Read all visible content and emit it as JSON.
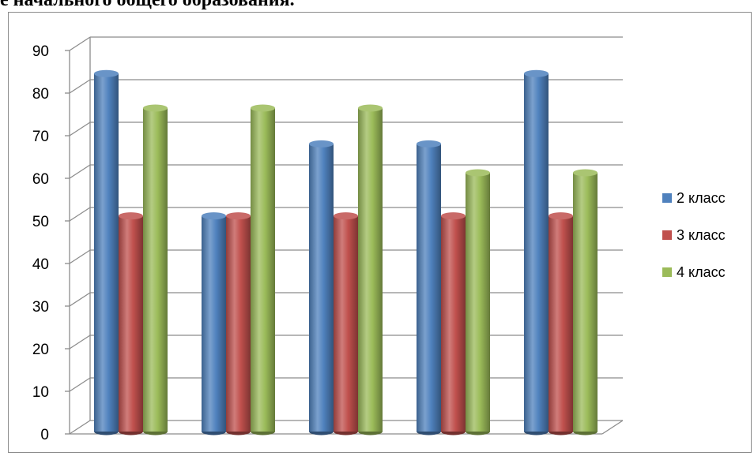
{
  "heading": "е начального общего образования.",
  "chart_data": {
    "type": "bar",
    "categories": [
      "",
      "",
      "",
      "",
      ""
    ],
    "series": [
      {
        "name": "2 класс",
        "color": "#4f81bd",
        "values": [
          83,
          50,
          66.7,
          66.7,
          83
        ]
      },
      {
        "name": "3 класс",
        "color": "#c0504d",
        "values": [
          50,
          50,
          50,
          50,
          50
        ]
      },
      {
        "name": "4 класс",
        "color": "#9bbb59",
        "values": [
          75,
          75,
          75,
          60,
          60
        ]
      }
    ],
    "ylim": [
      0,
      90
    ],
    "yticks": [
      "0",
      "10",
      "20",
      "30",
      "40",
      "50",
      "60",
      "70",
      "80",
      "90"
    ],
    "grid": true,
    "legend": "right",
    "style": "3d-cylinder"
  }
}
